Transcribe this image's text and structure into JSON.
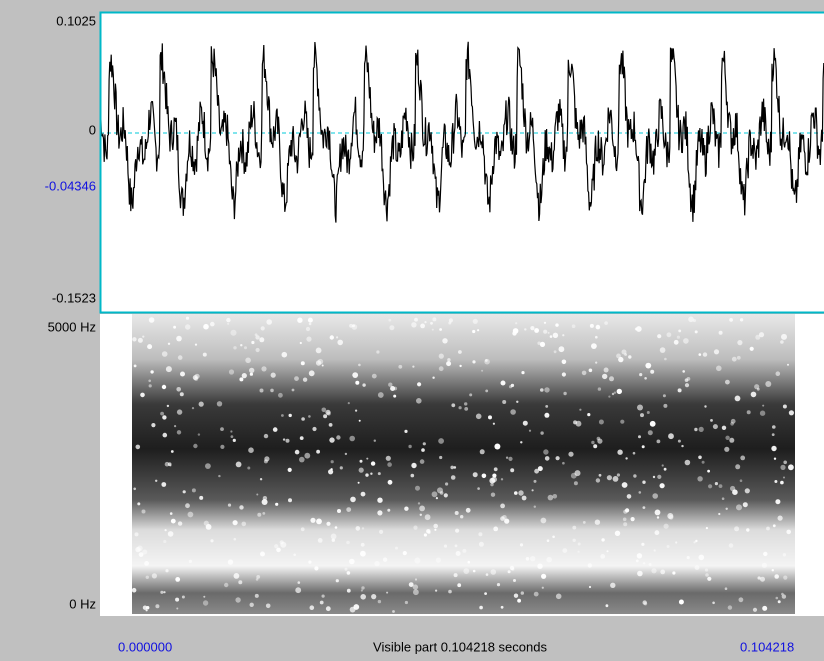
{
  "waveform": {
    "y_labels": [
      "0.1025",
      "0",
      "-0.04346",
      "-0.1523"
    ]
  },
  "spectrogram": {
    "y_labels": [
      "5000 Hz",
      "0 Hz"
    ]
  },
  "time_bar": {
    "start": "0.000000",
    "caption": "Visible part 0.104218 seconds",
    "end": "0.104218"
  }
}
